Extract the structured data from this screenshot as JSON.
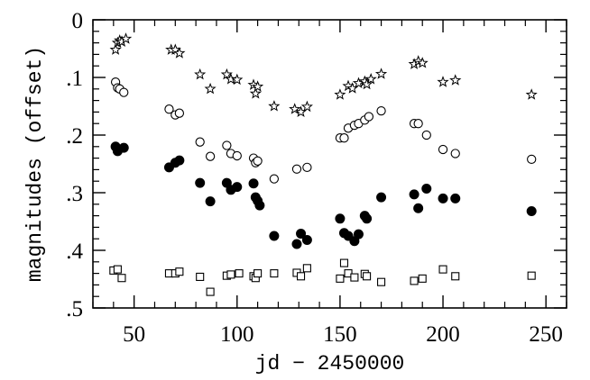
{
  "chart_data": {
    "type": "scatter",
    "title": "",
    "xlabel": "jd − 2450000",
    "ylabel": "magnitudes (offset)",
    "xlim": [
      30,
      260
    ],
    "ylim": [
      0.5,
      0
    ],
    "y_inverted": true,
    "xticks": [
      50,
      100,
      150,
      200,
      250
    ],
    "xtick_labels": [
      "50",
      "100",
      "150",
      "200",
      "250"
    ],
    "yticks": [
      0,
      0.1,
      0.2,
      0.3,
      0.4,
      0.5
    ],
    "ytick_labels": [
      "0",
      ".1",
      ".2",
      ".3",
      ".4",
      ".5"
    ],
    "grid": false,
    "legend": "none",
    "series": [
      {
        "marker": "star",
        "x": [
          41,
          42,
          43,
          44,
          46,
          68,
          70,
          72,
          82,
          87,
          95,
          97,
          100,
          108,
          109,
          110,
          118,
          128,
          131,
          134,
          150,
          154,
          156,
          159,
          162,
          163,
          165,
          170,
          186,
          188,
          190,
          200,
          206,
          243
        ],
        "y": [
          0.052,
          0.04,
          0.036,
          0.038,
          0.033,
          0.052,
          0.052,
          0.058,
          0.095,
          0.12,
          0.095,
          0.103,
          0.104,
          0.113,
          0.128,
          0.116,
          0.15,
          0.155,
          0.16,
          0.151,
          0.13,
          0.115,
          0.119,
          0.11,
          0.107,
          0.112,
          0.103,
          0.094,
          0.077,
          0.072,
          0.075,
          0.108,
          0.105,
          0.13
        ]
      },
      {
        "marker": "open-circle",
        "x": [
          41,
          42,
          43,
          45,
          67,
          70,
          72,
          82,
          87,
          95,
          97,
          100,
          108,
          109,
          110,
          118,
          129,
          134,
          150,
          152,
          154,
          157,
          159,
          162,
          164,
          170,
          186,
          188,
          192,
          200,
          206,
          243
        ],
        "y": [
          0.108,
          0.118,
          0.12,
          0.126,
          0.155,
          0.165,
          0.162,
          0.212,
          0.237,
          0.218,
          0.232,
          0.236,
          0.24,
          0.248,
          0.245,
          0.276,
          0.259,
          0.256,
          0.205,
          0.205,
          0.188,
          0.183,
          0.18,
          0.174,
          0.168,
          0.158,
          0.18,
          0.18,
          0.2,
          0.225,
          0.232,
          0.242
        ]
      },
      {
        "marker": "filled-circle",
        "x": [
          41,
          42,
          45,
          67,
          70,
          72,
          82,
          87,
          95,
          97,
          100,
          108,
          109,
          110,
          111,
          118,
          129,
          131,
          134,
          150,
          152,
          154,
          157,
          159,
          162,
          163,
          170,
          186,
          188,
          192,
          200,
          206,
          243
        ],
        "y": [
          0.22,
          0.228,
          0.222,
          0.256,
          0.248,
          0.244,
          0.283,
          0.315,
          0.283,
          0.295,
          0.29,
          0.284,
          0.308,
          0.314,
          0.322,
          0.375,
          0.389,
          0.371,
          0.382,
          0.345,
          0.37,
          0.375,
          0.384,
          0.372,
          0.34,
          0.345,
          0.308,
          0.303,
          0.327,
          0.293,
          0.31,
          0.31,
          0.332
        ]
      },
      {
        "marker": "open-square",
        "x": [
          40,
          42,
          44,
          67,
          70,
          72,
          82,
          87,
          95,
          97,
          101,
          108,
          109,
          110,
          118,
          129,
          131,
          134,
          150,
          152,
          154,
          157,
          162,
          163,
          170,
          186,
          190,
          200,
          206,
          243
        ],
        "y": [
          0.435,
          0.433,
          0.448,
          0.44,
          0.44,
          0.437,
          0.446,
          0.472,
          0.444,
          0.442,
          0.44,
          0.445,
          0.448,
          0.44,
          0.44,
          0.439,
          0.445,
          0.431,
          0.449,
          0.422,
          0.44,
          0.447,
          0.441,
          0.445,
          0.455,
          0.453,
          0.449,
          0.433,
          0.445,
          0.444
        ]
      }
    ]
  }
}
